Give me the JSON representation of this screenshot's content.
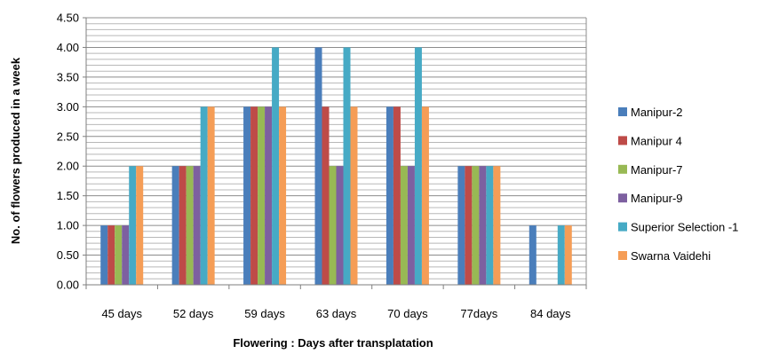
{
  "chart_data": {
    "type": "bar",
    "title": "",
    "xlabel": "Flowering : Days after transplatation",
    "ylabel": "No. of flowers produced in a week",
    "categories": [
      "45 days",
      "52 days",
      "59 days",
      "63 days",
      "70 days",
      "77days",
      "84 days"
    ],
    "ylim": [
      0,
      4.5
    ],
    "yticks": [
      "0.00",
      "0.50",
      "1.00",
      "1.50",
      "2.00",
      "2.50",
      "3.00",
      "3.50",
      "4.00",
      "4.50"
    ],
    "minor_grid_step": 0.1,
    "grid": true,
    "legend_position": "right",
    "series": [
      {
        "name": "Manipur-2",
        "color": "#4a7ebb",
        "values": [
          1,
          2,
          3,
          4,
          3,
          2,
          1
        ]
      },
      {
        "name": "Manipur 4",
        "color": "#be4b48",
        "values": [
          1,
          2,
          3,
          3,
          3,
          2,
          0
        ]
      },
      {
        "name": "Manipur-7",
        "color": "#98b954",
        "values": [
          1,
          2,
          3,
          2,
          2,
          2,
          0
        ]
      },
      {
        "name": "Manipur-9",
        "color": "#7d60a0",
        "values": [
          1,
          2,
          3,
          2,
          2,
          2,
          0
        ]
      },
      {
        "name": "Superior Selection -1",
        "color": "#46aac5",
        "values": [
          2,
          3,
          4,
          4,
          4,
          2,
          1
        ]
      },
      {
        "name": "Swarna Vaidehi",
        "color": "#f59d56",
        "values": [
          2,
          3,
          3,
          3,
          3,
          2,
          1
        ]
      }
    ]
  }
}
